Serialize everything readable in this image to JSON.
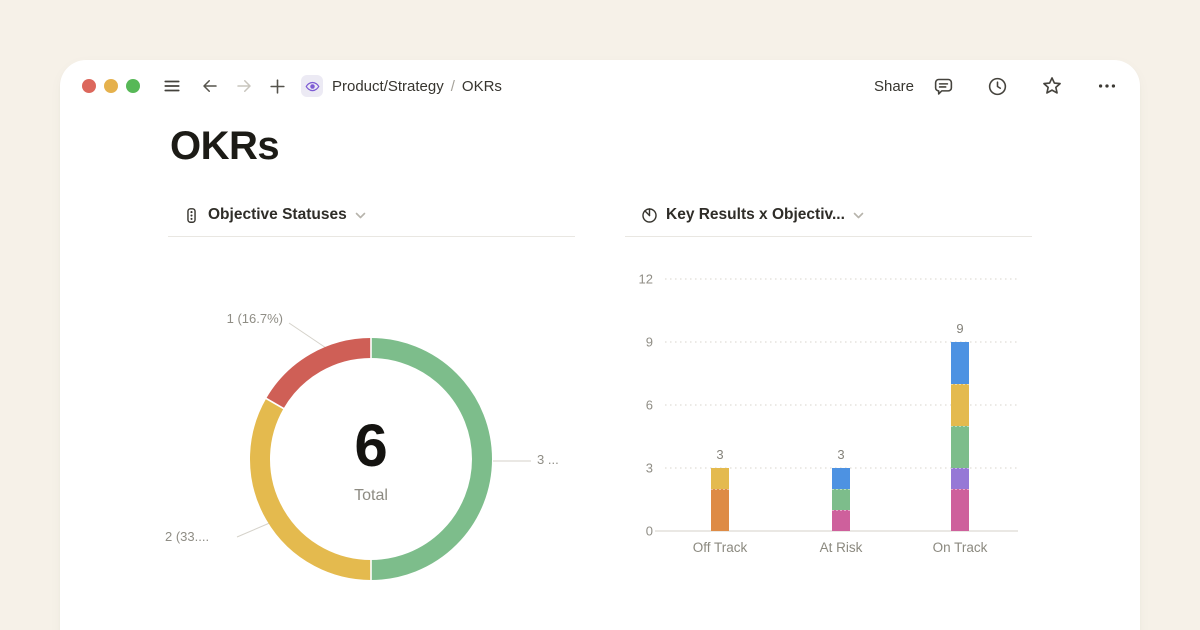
{
  "window": {
    "traffic_lights": {
      "close": "#dc675c",
      "minimize": "#e5b14d",
      "zoom": "#57b857"
    },
    "breadcrumb": {
      "parent": "Product/Strategy",
      "separator": "/",
      "current": "OKRs"
    },
    "toolbar_left_icons": [
      "menu-icon",
      "back-icon",
      "forward-icon",
      "plus-icon",
      "page-eye-icon"
    ],
    "actions": {
      "share_label": "Share",
      "icons": [
        "comments-icon",
        "history-icon",
        "favorite-icon",
        "more-icon"
      ]
    }
  },
  "page": {
    "title": "OKRs"
  },
  "left_chart_header": {
    "title": "Objective Statuses",
    "icon": "traffic-light-icon"
  },
  "right_chart_header": {
    "title": "Key Results x Objectiv...",
    "icon": "pie-chart-icon"
  },
  "chart_data": [
    {
      "type": "pie",
      "style": "donut",
      "title": "Objective Statuses",
      "center_value": "6",
      "center_label": "Total",
      "slices": [
        {
          "value": 3,
          "percent": 50.0,
          "color": "#7dbd8b",
          "callout": "3 ..."
        },
        {
          "value": 2,
          "percent": 33.3,
          "color": "#e4ba4e",
          "callout": "2 (33...."
        },
        {
          "value": 1,
          "percent": 16.7,
          "color": "#cf5f56",
          "callout": "1 (16.7%)"
        }
      ]
    },
    {
      "type": "bar",
      "stacked": true,
      "title": "Key Results x Objectiv...",
      "categories": [
        "Off Track",
        "At Risk",
        "On Track"
      ],
      "totals": [
        3,
        3,
        9
      ],
      "y_ticks": [
        0,
        3,
        6,
        9,
        12
      ],
      "ylim": [
        0,
        12
      ],
      "grid": "dotted-horizontal",
      "stacks": [
        [
          {
            "value": 2,
            "color": "#de8b45"
          },
          {
            "value": 1,
            "color": "#e4ba4e"
          }
        ],
        [
          {
            "value": 1,
            "color": "#ce609c"
          },
          {
            "value": 1,
            "color": "#7dbd8b"
          },
          {
            "value": 1,
            "color": "#4d92e2"
          }
        ],
        [
          {
            "value": 2,
            "color": "#ce609c"
          },
          {
            "value": 1,
            "color": "#9678d6"
          },
          {
            "value": 2,
            "color": "#7dbd8b"
          },
          {
            "value": 2,
            "color": "#e4ba4e"
          },
          {
            "value": 2,
            "color": "#4d92e2"
          }
        ]
      ]
    }
  ]
}
